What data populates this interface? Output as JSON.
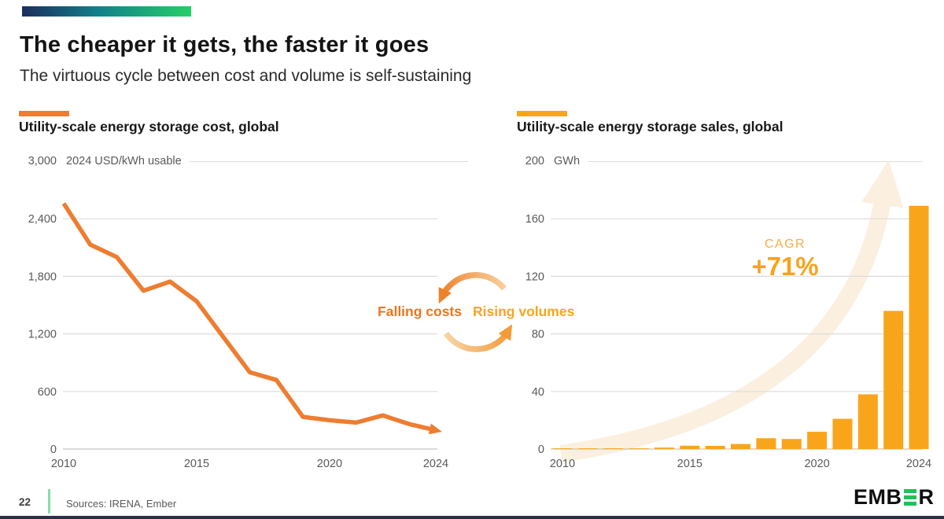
{
  "slide": {
    "title": "The cheaper it gets, the faster it goes",
    "subtitle": "The virtuous cycle between cost and volume is self-sustaining",
    "page_number": "22",
    "sources": "Sources: IRENA, Ember",
    "logo": {
      "prefix": "EMB",
      "suffix": "R"
    }
  },
  "cycle": {
    "left_label": "Falling costs",
    "right_label": "Rising volumes",
    "left_color": "#E87722",
    "right_color": "#F9A51B"
  },
  "chart_data": [
    {
      "type": "line",
      "title": "Utility-scale energy storage cost, global",
      "unit_label": "2024 USD/kWh usable",
      "top_tick_label": "3,000",
      "x": [
        2010,
        2011,
        2012,
        2013,
        2014,
        2015,
        2016,
        2017,
        2018,
        2019,
        2020,
        2021,
        2022,
        2023,
        2024
      ],
      "values": [
        2560,
        2130,
        2000,
        1650,
        1745,
        1540,
        1170,
        800,
        720,
        335,
        300,
        275,
        350,
        260,
        195
      ],
      "ylim": [
        0,
        3000
      ],
      "yticks": [
        0,
        600,
        1200,
        1800,
        2400,
        3000
      ],
      "ytick_labels": [
        "0",
        "600",
        "1,200",
        "1,800",
        "2,400",
        "3,000"
      ],
      "xticks": [
        2010,
        2015,
        2020,
        2024
      ],
      "grid": true,
      "legend": "none",
      "line_color": "#ED7D31",
      "end_arrow": true
    },
    {
      "type": "bar",
      "title": "Utility-scale energy storage sales, global",
      "unit_label": "GWh",
      "top_tick_label": "200",
      "x": [
        2010,
        2011,
        2012,
        2013,
        2014,
        2015,
        2016,
        2017,
        2018,
        2019,
        2020,
        2021,
        2022,
        2023,
        2024
      ],
      "values": [
        0.1,
        0.15,
        0.2,
        0.4,
        1,
        2.3,
        2.2,
        3.5,
        7.5,
        7,
        12,
        21,
        38,
        96,
        169
      ],
      "ylim": [
        0,
        200
      ],
      "yticks": [
        0,
        40,
        80,
        120,
        160,
        200
      ],
      "ytick_labels": [
        "0",
        "40",
        "80",
        "120",
        "160",
        "200"
      ],
      "xticks": [
        2010,
        2015,
        2020,
        2024
      ],
      "grid": true,
      "legend": "none",
      "bar_color": "#F9A51B",
      "annotation": {
        "label": "CAGR",
        "value": "+71%"
      }
    }
  ]
}
